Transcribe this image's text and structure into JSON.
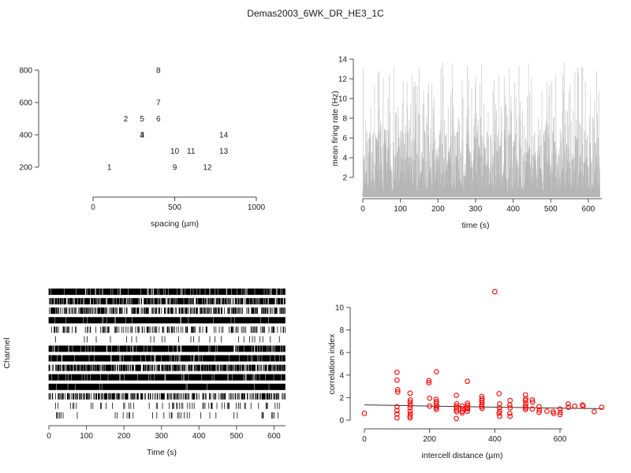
{
  "title": "Demas2003_6WK_DR_HE3_1C",
  "colors": {
    "text": "#1a1a1a",
    "axis": "#4a4a4a",
    "trace_light": "#cccccc",
    "trace_dark": "#b5b5b5",
    "raster": "#000000",
    "marker_red": "#ff0000",
    "fit_line": "#333333",
    "background": "#ffffff"
  },
  "chart_data": [
    {
      "id": "electrode-map",
      "type": "scatter",
      "marker": "numeric-labels",
      "xlabel": "spacing (µm)",
      "ylabel": "",
      "x_ticks": [
        0,
        500,
        1000
      ],
      "y_ticks": [
        200,
        400,
        600,
        800
      ],
      "xlim": [
        0,
        1000
      ],
      "ylim": [
        200,
        800
      ],
      "points": [
        {
          "label": "1",
          "x": 100,
          "y": 200
        },
        {
          "label": "2",
          "x": 200,
          "y": 500
        },
        {
          "label": "3",
          "x": 300,
          "y": 400
        },
        {
          "label": "4",
          "x": 300,
          "y": 400
        },
        {
          "label": "5",
          "x": 300,
          "y": 500
        },
        {
          "label": "6",
          "x": 400,
          "y": 500
        },
        {
          "label": "7",
          "x": 400,
          "y": 600
        },
        {
          "label": "8",
          "x": 400,
          "y": 800
        },
        {
          "label": "9",
          "x": 500,
          "y": 200
        },
        {
          "label": "10",
          "x": 500,
          "y": 300
        },
        {
          "label": "11",
          "x": 600,
          "y": 300
        },
        {
          "label": "12",
          "x": 700,
          "y": 200
        },
        {
          "label": "13",
          "x": 800,
          "y": 300
        },
        {
          "label": "14",
          "x": 800,
          "y": 400
        }
      ]
    },
    {
      "id": "mean-firing-rate",
      "type": "line",
      "xlabel": "time (s)",
      "ylabel": "mean firing rate (Hz)",
      "x_ticks": [
        0,
        100,
        200,
        300,
        400,
        500,
        600
      ],
      "y_ticks": [
        2,
        4,
        6,
        8,
        10,
        12,
        14
      ],
      "xlim": [
        0,
        630
      ],
      "ylim": [
        0,
        14
      ],
      "series_summary": {
        "description": "dense noisy gray firing-rate trace, solid near baseline",
        "min": 0.5,
        "max": 13.7,
        "typical_range": "2-7",
        "seed": 7
      }
    },
    {
      "id": "spike-raster",
      "type": "raster",
      "xlabel": "Time (s)",
      "ylabel": "Channel",
      "x_ticks": [
        0,
        100,
        200,
        300,
        400,
        500,
        600
      ],
      "xlim": [
        0,
        630
      ],
      "n_channels": 14,
      "row_densities_top_to_bottom": [
        0.85,
        0.72,
        0.52,
        0.95,
        0.3,
        0.05,
        0.9,
        0.93,
        0.7,
        0.93,
        0.97,
        0.45,
        0.12,
        0.07
      ],
      "seed": 11
    },
    {
      "id": "correlation-index",
      "type": "scatter",
      "xlabel": "intercell distance (µm)",
      "ylabel": "correlation index",
      "x_ticks": [
        0,
        200,
        400,
        600
      ],
      "y_ticks": [
        0,
        2,
        4,
        6,
        8,
        10
      ],
      "xlim": [
        0,
        730
      ],
      "ylim": [
        0,
        11.5
      ],
      "points": [
        [
          0,
          0.6
        ],
        [
          100,
          4.25
        ],
        [
          100,
          3.55
        ],
        [
          102,
          2.7
        ],
        [
          102,
          2.5
        ],
        [
          100,
          1.2
        ],
        [
          100,
          0.85
        ],
        [
          100,
          0.55
        ],
        [
          100,
          0.2
        ],
        [
          140,
          2.4
        ],
        [
          141,
          1.8
        ],
        [
          140,
          1.6
        ],
        [
          141,
          1.35
        ],
        [
          140,
          1.1
        ],
        [
          140,
          0.8
        ],
        [
          141,
          0.55
        ],
        [
          140,
          0.35
        ],
        [
          140,
          0.2
        ],
        [
          198,
          3.5
        ],
        [
          198,
          3.32
        ],
        [
          200,
          1.95
        ],
        [
          200,
          1.25
        ],
        [
          221,
          4.3
        ],
        [
          220,
          1.85
        ],
        [
          221,
          1.65
        ],
        [
          220,
          1.5
        ],
        [
          222,
          1.25
        ],
        [
          220,
          1.1
        ],
        [
          221,
          0.95
        ],
        [
          282,
          2.2
        ],
        [
          283,
          1.45
        ],
        [
          282,
          1.25
        ],
        [
          283,
          1.1
        ],
        [
          282,
          0.9
        ],
        [
          283,
          0.75
        ],
        [
          282,
          0.15
        ],
        [
          300,
          1.25
        ],
        [
          301,
          1.0
        ],
        [
          300,
          0.8
        ],
        [
          300,
          0.65
        ],
        [
          316,
          3.45
        ],
        [
          316,
          1.5
        ],
        [
          317,
          1.3
        ],
        [
          316,
          1.1
        ],
        [
          317,
          1.0
        ],
        [
          316,
          0.8
        ],
        [
          360,
          2.1
        ],
        [
          361,
          1.9
        ],
        [
          360,
          1.75
        ],
        [
          361,
          1.55
        ],
        [
          360,
          1.35
        ],
        [
          360,
          1.2
        ],
        [
          361,
          1.05
        ],
        [
          400,
          11.4
        ],
        [
          413,
          2.35
        ],
        [
          415,
          1.45
        ],
        [
          414,
          1.1
        ],
        [
          415,
          0.8
        ],
        [
          413,
          0.6
        ],
        [
          415,
          0.35
        ],
        [
          447,
          1.75
        ],
        [
          446,
          1.35
        ],
        [
          447,
          1.1
        ],
        [
          446,
          0.6
        ],
        [
          447,
          0.35
        ],
        [
          494,
          2.25
        ],
        [
          495,
          1.9
        ],
        [
          494,
          1.75
        ],
        [
          495,
          1.5
        ],
        [
          494,
          1.25
        ],
        [
          495,
          1.1
        ],
        [
          494,
          0.95
        ],
        [
          515,
          1.8
        ],
        [
          516,
          1.6
        ],
        [
          515,
          1.0
        ],
        [
          536,
          1.2
        ],
        [
          537,
          0.9
        ],
        [
          536,
          0.7
        ],
        [
          560,
          0.8
        ],
        [
          579,
          0.75
        ],
        [
          581,
          0.6
        ],
        [
          600,
          1.0
        ],
        [
          601,
          0.7
        ],
        [
          600,
          0.5
        ],
        [
          625,
          1.45
        ],
        [
          626,
          1.15
        ],
        [
          645,
          1.25
        ],
        [
          669,
          1.35
        ],
        [
          671,
          1.25
        ],
        [
          705,
          0.75
        ],
        [
          728,
          1.15
        ]
      ],
      "fit_line": [
        [
          0,
          1.36
        ],
        [
          150,
          1.28
        ],
        [
          300,
          1.2
        ],
        [
          450,
          1.13
        ],
        [
          600,
          1.07
        ],
        [
          730,
          1.02
        ]
      ]
    }
  ]
}
